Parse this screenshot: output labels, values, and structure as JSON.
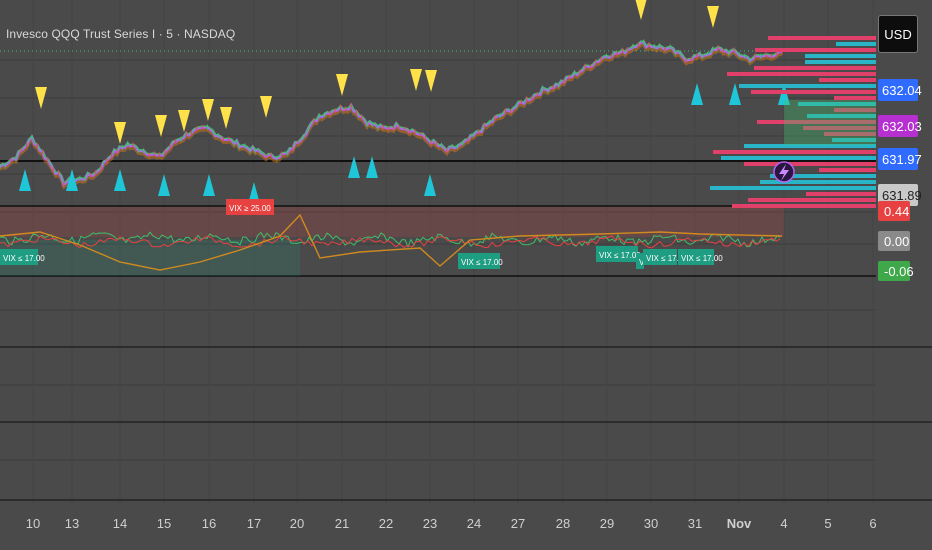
{
  "header": {
    "title": "Invesco QQQ Trust Series I · 5 · NASDAQ",
    "currency": "USD"
  },
  "colors": {
    "background": "#4a4a4a",
    "grid": "#3c3c3c",
    "up_triangle": "#1fc6d8",
    "down_triangle": "#ffe14a",
    "price_line_purple": "#b064f0",
    "price_line_green": "#3fbf6a",
    "vix_low_label": "#1f9d82",
    "vix_high_label": "#e84141",
    "osc_line": "#d08a1e",
    "volume_profile_red": "#e0406a",
    "volume_profile_teal": "#2ab4c8"
  },
  "chart_data": [
    {
      "type": "line",
      "title": "Invesco QQQ Trust Series I · 5 · NASDAQ",
      "x_ticks": [
        "10",
        "13",
        "14",
        "15",
        "16",
        "17",
        "20",
        "21",
        "22",
        "23",
        "24",
        "27",
        "28",
        "29",
        "30",
        "31",
        "Nov",
        "4",
        "5",
        "6"
      ],
      "price_labels": [
        {
          "value": "632.04",
          "color": "#2f6bff"
        },
        {
          "value": "632.03",
          "color": "#b62fd0"
        },
        {
          "value": "631.97",
          "color": "#2f6bff"
        },
        {
          "value": "631.89",
          "color": "#c9c9c9"
        }
      ],
      "series": [
        {
          "values": [
            594,
            597,
            603,
            596,
            589,
            590,
            592,
            598,
            601,
            599,
            597,
            602,
            605,
            606,
            603,
            601,
            599,
            597,
            598,
            604,
            610,
            612,
            613,
            608,
            606,
            607,
            605,
            602,
            599,
            601,
            605,
            609,
            612,
            615,
            618,
            620,
            623,
            626,
            629,
            630,
            633,
            632,
            631,
            628,
            629,
            631,
            630,
            628,
            629,
            630
          ]
        }
      ],
      "buy_markers_x": [
        "10",
        "13",
        "14",
        "15",
        "16",
        "17",
        "21",
        "21",
        "23",
        "31",
        "31",
        "4"
      ],
      "sell_markers_x": [
        "10",
        "14",
        "15",
        "15",
        "16",
        "16",
        "17",
        "21",
        "22",
        "22",
        "30",
        "Nov"
      ]
    },
    {
      "type": "line",
      "annotations": [
        "VIX ≤ 17.00",
        "VIX ≥ 25.00",
        "VIX ≤ 17.00",
        "VIX ≤ 17.00 VI",
        "V",
        "VIX ≤ 17.00",
        "VIX ≤ 17.00"
      ],
      "value_labels": [
        {
          "value": "0.44",
          "color": "#e84141"
        },
        {
          "value": "0.00",
          "color": "#8a8a8a"
        },
        {
          "value": "-0.06",
          "color": "#3fa84a"
        }
      ]
    }
  ]
}
